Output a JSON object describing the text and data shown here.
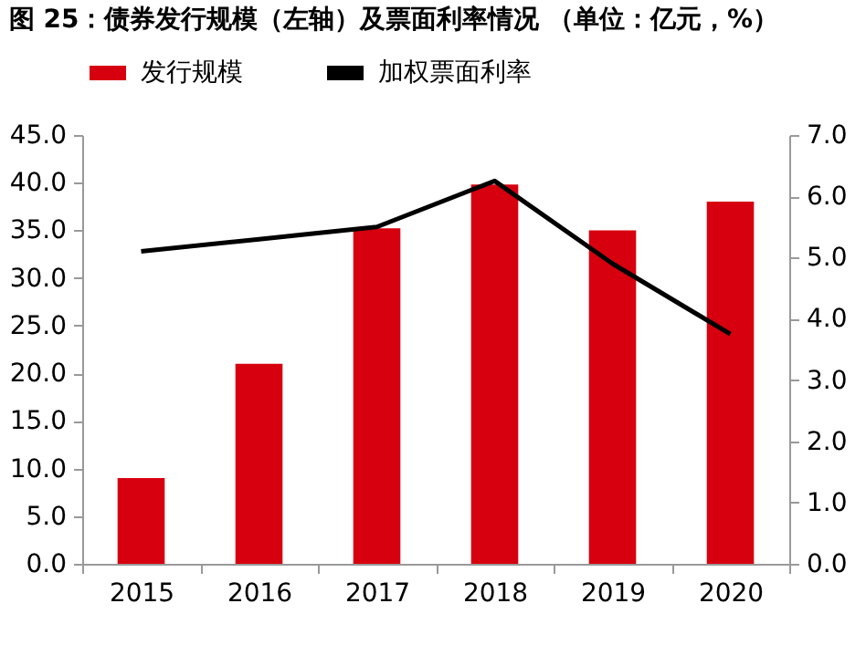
{
  "chart_data": {
    "type": "bar",
    "title": "图 25：债券发行规模（左轴）及票面利率情况 （单位：亿元，%）",
    "categories": [
      "2015",
      "2016",
      "2017",
      "2018",
      "2019",
      "2020"
    ],
    "series": [
      {
        "name": "发行规模",
        "color": "#d7000f",
        "values": [
          9.0,
          21.0,
          35.2,
          39.8,
          35.0,
          38.0
        ]
      },
      {
        "name": "加权票面利率",
        "type": "line",
        "axis": "y2",
        "color": "#000000",
        "values": [
          5.1,
          5.3,
          5.5,
          6.25,
          4.9,
          3.75
        ]
      }
    ],
    "ylim": [
      0,
      45
    ],
    "yticks": [
      {
        "value": 0,
        "label": "0.0"
      },
      {
        "value": 5,
        "label": "5.0"
      },
      {
        "value": 10,
        "label": "10.0"
      },
      {
        "value": 15,
        "label": "15.0"
      },
      {
        "value": 20,
        "label": "20.0"
      },
      {
        "value": 25,
        "label": "25.0"
      },
      {
        "value": 30,
        "label": "30.0"
      },
      {
        "value": 35,
        "label": "35.0"
      },
      {
        "value": 40,
        "label": "40.0"
      },
      {
        "value": 45,
        "label": "45.0"
      }
    ],
    "y2lim": [
      0,
      7
    ],
    "y2ticks": [
      {
        "value": 0,
        "label": "0.0"
      },
      {
        "value": 1,
        "label": "1.0"
      },
      {
        "value": 2,
        "label": "2.0"
      },
      {
        "value": 3,
        "label": "3.0"
      },
      {
        "value": 4,
        "label": "4.0"
      },
      {
        "value": 5,
        "label": "5.0"
      },
      {
        "value": 6,
        "label": "6.0"
      },
      {
        "value": 7,
        "label": "7.0"
      }
    ],
    "legend": "top",
    "grid": false,
    "marker": "none"
  }
}
